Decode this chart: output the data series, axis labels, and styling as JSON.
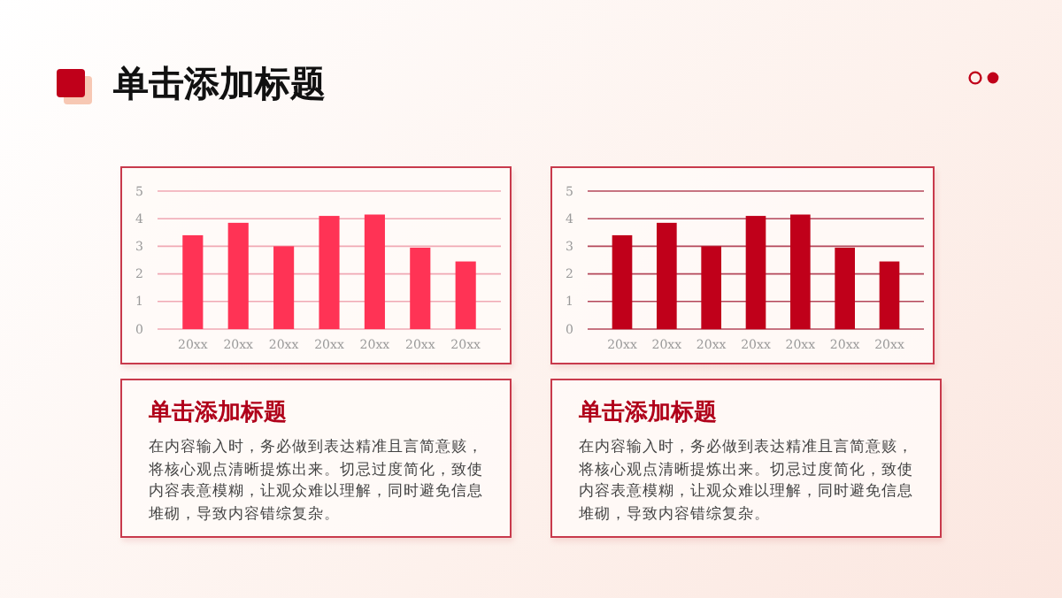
{
  "chart_data": [
    {
      "type": "other",
      "title": "单击添加标题"
    },
    {
      "type": "bar",
      "categories": [
        "20xx",
        "20xx",
        "20xx",
        "20xx",
        "20xx",
        "20xx",
        "20xx"
      ],
      "values": [
        3.4,
        3.85,
        3.0,
        4.1,
        4.15,
        2.95,
        2.45
      ],
      "color": "#ff3355",
      "ylim": [
        0,
        5
      ],
      "yticks": [
        0,
        1,
        2,
        3,
        4,
        5
      ],
      "grid": "y"
    },
    {
      "type": "bar",
      "categories": [
        "20xx",
        "20xx",
        "20xx",
        "20xx",
        "20xx",
        "20xx",
        "20xx"
      ],
      "values": [
        3.4,
        3.85,
        3.0,
        4.1,
        4.15,
        2.95,
        2.45
      ],
      "color": "#c0001a",
      "ylim": [
        0,
        5
      ],
      "yticks": [
        0,
        1,
        2,
        3,
        4,
        5
      ],
      "grid": "y"
    },
    {
      "type": "other",
      "title": "单击添加标题",
      "annotations": [
        "在内容输入时，务必做到表达精准且言简意赅，将核心观点清晰提炼出来。切忌过度简化，致使内容表意模糊，让观众难以理解，同时避免信息堆砌，导致内容错综复杂。"
      ]
    },
    {
      "type": "other",
      "title": "单击添加标题",
      "annotations": [
        "在内容输入时，务必做到表达精准且言简意赅，将核心观点清晰提炼出来。切忌过度简化，致使内容表意模糊，让观众难以理解，同时避免信息堆砌，导致内容错综复杂。"
      ]
    }
  ]
}
